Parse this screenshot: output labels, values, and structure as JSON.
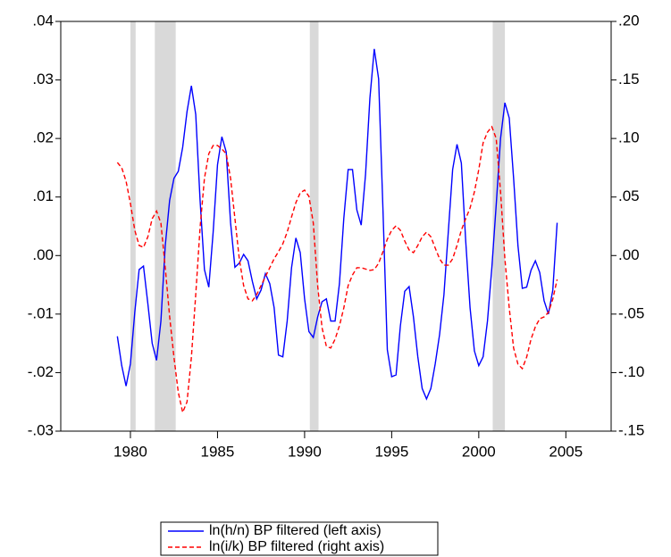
{
  "chart_data": {
    "type": "line",
    "x": [
      1979.25,
      1979.5,
      1979.75,
      1980,
      1980.25,
      1980.5,
      1980.75,
      1981,
      1981.25,
      1981.5,
      1981.75,
      1982,
      1982.25,
      1982.5,
      1982.75,
      1983,
      1983.25,
      1983.5,
      1983.75,
      1984,
      1984.25,
      1984.5,
      1984.75,
      1985,
      1985.25,
      1985.5,
      1985.75,
      1986,
      1986.25,
      1986.5,
      1986.75,
      1987,
      1987.25,
      1987.5,
      1987.75,
      1988,
      1988.25,
      1988.5,
      1988.75,
      1989,
      1989.25,
      1989.5,
      1989.75,
      1990,
      1990.25,
      1990.5,
      1990.75,
      1991,
      1991.25,
      1991.5,
      1991.75,
      1992,
      1992.25,
      1992.5,
      1992.75,
      1993,
      1993.25,
      1993.5,
      1993.75,
      1994,
      1994.25,
      1994.5,
      1994.75,
      1995,
      1995.25,
      1995.5,
      1995.75,
      1996,
      1996.25,
      1996.5,
      1996.75,
      1997,
      1997.25,
      1997.5,
      1997.75,
      1998,
      1998.25,
      1998.5,
      1998.75,
      1999,
      1999.25,
      1999.5,
      1999.75,
      2000,
      2000.25,
      2000.5,
      2000.75,
      2001,
      2001.25,
      2001.5,
      2001.75,
      2002,
      2002.25,
      2002.5,
      2002.75,
      2003,
      2003.25,
      2003.5,
      2003.75,
      2004,
      2004.25,
      2004.5
    ],
    "series": [
      {
        "name": "ln(h/n) BP filtered (left axis)",
        "color": "#0000ff",
        "line_style": "solid",
        "values": [
          -0.0138,
          -0.0188,
          -0.0223,
          -0.0185,
          -0.0097,
          -0.0024,
          -0.0018,
          -0.0082,
          -0.015,
          -0.0179,
          -0.0112,
          0.0017,
          0.0094,
          0.0132,
          0.0144,
          0.0185,
          0.0246,
          0.029,
          0.0241,
          0.0094,
          -0.0024,
          -0.0054,
          0.004,
          0.0155,
          0.0203,
          0.0177,
          0.0056,
          -0.002,
          -0.0013,
          0.0002,
          -0.0009,
          -0.0044,
          -0.0074,
          -0.0059,
          -0.0031,
          -0.0048,
          -0.0089,
          -0.017,
          -0.0173,
          -0.0112,
          -0.0021,
          0.003,
          0.0005,
          -0.0074,
          -0.013,
          -0.014,
          -0.0105,
          -0.0079,
          -0.0074,
          -0.0112,
          -0.0112,
          -0.0048,
          0.0063,
          0.0147,
          0.0147,
          0.0078,
          0.0052,
          0.0139,
          0.0269,
          0.0353,
          0.0302,
          0.0078,
          -0.0161,
          -0.0207,
          -0.0204,
          -0.012,
          -0.0061,
          -0.0053,
          -0.0105,
          -0.0173,
          -0.0227,
          -0.0245,
          -0.0227,
          -0.0185,
          -0.0135,
          -0.0067,
          0.004,
          0.0147,
          0.019,
          0.0158,
          0.0025,
          -0.0089,
          -0.0163,
          -0.0188,
          -0.0173,
          -0.0112,
          -0.0021,
          0.0086,
          0.02,
          0.0261,
          0.0235,
          0.0132,
          0.0017,
          -0.0056,
          -0.0054,
          -0.0025,
          -0.0009,
          -0.0029,
          -0.0077,
          -0.01,
          -0.0059,
          0.0056
        ]
      },
      {
        "name": "ln(i/k) BP filtered (right axis)",
        "color": "#ff0000",
        "line_style": "dashed",
        "axis": "y2",
        "values": [
          0.0795,
          0.075,
          0.0635,
          0.0445,
          0.0216,
          0.0086,
          0.007,
          0.016,
          0.0315,
          0.038,
          0.0277,
          -0.0104,
          -0.052,
          -0.087,
          -0.117,
          -0.134,
          -0.125,
          -0.087,
          -0.0333,
          0.024,
          0.066,
          0.087,
          0.094,
          0.094,
          0.091,
          0.087,
          0.066,
          0.0315,
          -0.0028,
          -0.0257,
          -0.037,
          -0.0387,
          -0.0333,
          -0.0257,
          -0.018,
          -0.0104,
          -0.0028,
          0.0033,
          0.01,
          0.02,
          0.033,
          0.0452,
          0.0536,
          0.0559,
          0.0505,
          0.0277,
          -0.0257,
          -0.0616,
          -0.0775,
          -0.079,
          -0.0715,
          -0.06,
          -0.0448,
          -0.0257,
          -0.0166,
          -0.0104,
          -0.0104,
          -0.0115,
          -0.0127,
          -0.012,
          -0.0066,
          0.0033,
          0.014,
          0.0216,
          0.0254,
          0.0216,
          0.0124,
          0.0048,
          0.0025,
          0.0086,
          0.016,
          0.02,
          0.016,
          0.0064,
          -0.0028,
          -0.0082,
          -0.0082,
          -0.0028,
          0.0086,
          0.0216,
          0.0315,
          0.0406,
          0.0544,
          0.0734,
          0.0963,
          0.1054,
          0.11,
          0.1001,
          0.0544,
          -0.0028,
          -0.0448,
          -0.079,
          -0.0928,
          -0.0966,
          -0.0867,
          -0.0715,
          -0.0608,
          -0.054,
          -0.0524,
          -0.0486,
          -0.0372,
          -0.0204
        ]
      }
    ],
    "shading": [
      [
        1980.0,
        1980.3
      ],
      [
        1981.4,
        1982.6
      ],
      [
        1990.3,
        1990.8
      ],
      [
        2000.8,
        2001.5
      ]
    ],
    "shading_color": "#d9d9d9",
    "xlim": [
      1976,
      2007.6
    ],
    "xticks": [
      1980,
      1985,
      1990,
      1995,
      2000,
      2005
    ],
    "ylim": [
      -0.03,
      0.04
    ],
    "yticks": [
      {
        "value": -0.03,
        "label": "-.03"
      },
      {
        "value": -0.02,
        "label": "-.02"
      },
      {
        "value": -0.01,
        "label": "-.01"
      },
      {
        "value": 0,
        "label": ".00"
      },
      {
        "value": 0.01,
        "label": ".01"
      },
      {
        "value": 0.02,
        "label": ".02"
      },
      {
        "value": 0.03,
        "label": ".03"
      },
      {
        "value": 0.04,
        "label": ".04"
      }
    ],
    "y2lim": [
      -0.15,
      0.2
    ],
    "y2ticks": [
      {
        "value": -0.15,
        "label": "-.15"
      },
      {
        "value": -0.1,
        "label": "-.10"
      },
      {
        "value": -0.05,
        "label": "-.05"
      },
      {
        "value": 0,
        "label": ".00"
      },
      {
        "value": 0.05,
        "label": ".05"
      },
      {
        "value": 0.1,
        "label": ".10"
      },
      {
        "value": 0.15,
        "label": ".15"
      },
      {
        "value": 0.2,
        "label": ".20"
      }
    ],
    "grid": false,
    "legend": "bottom"
  }
}
